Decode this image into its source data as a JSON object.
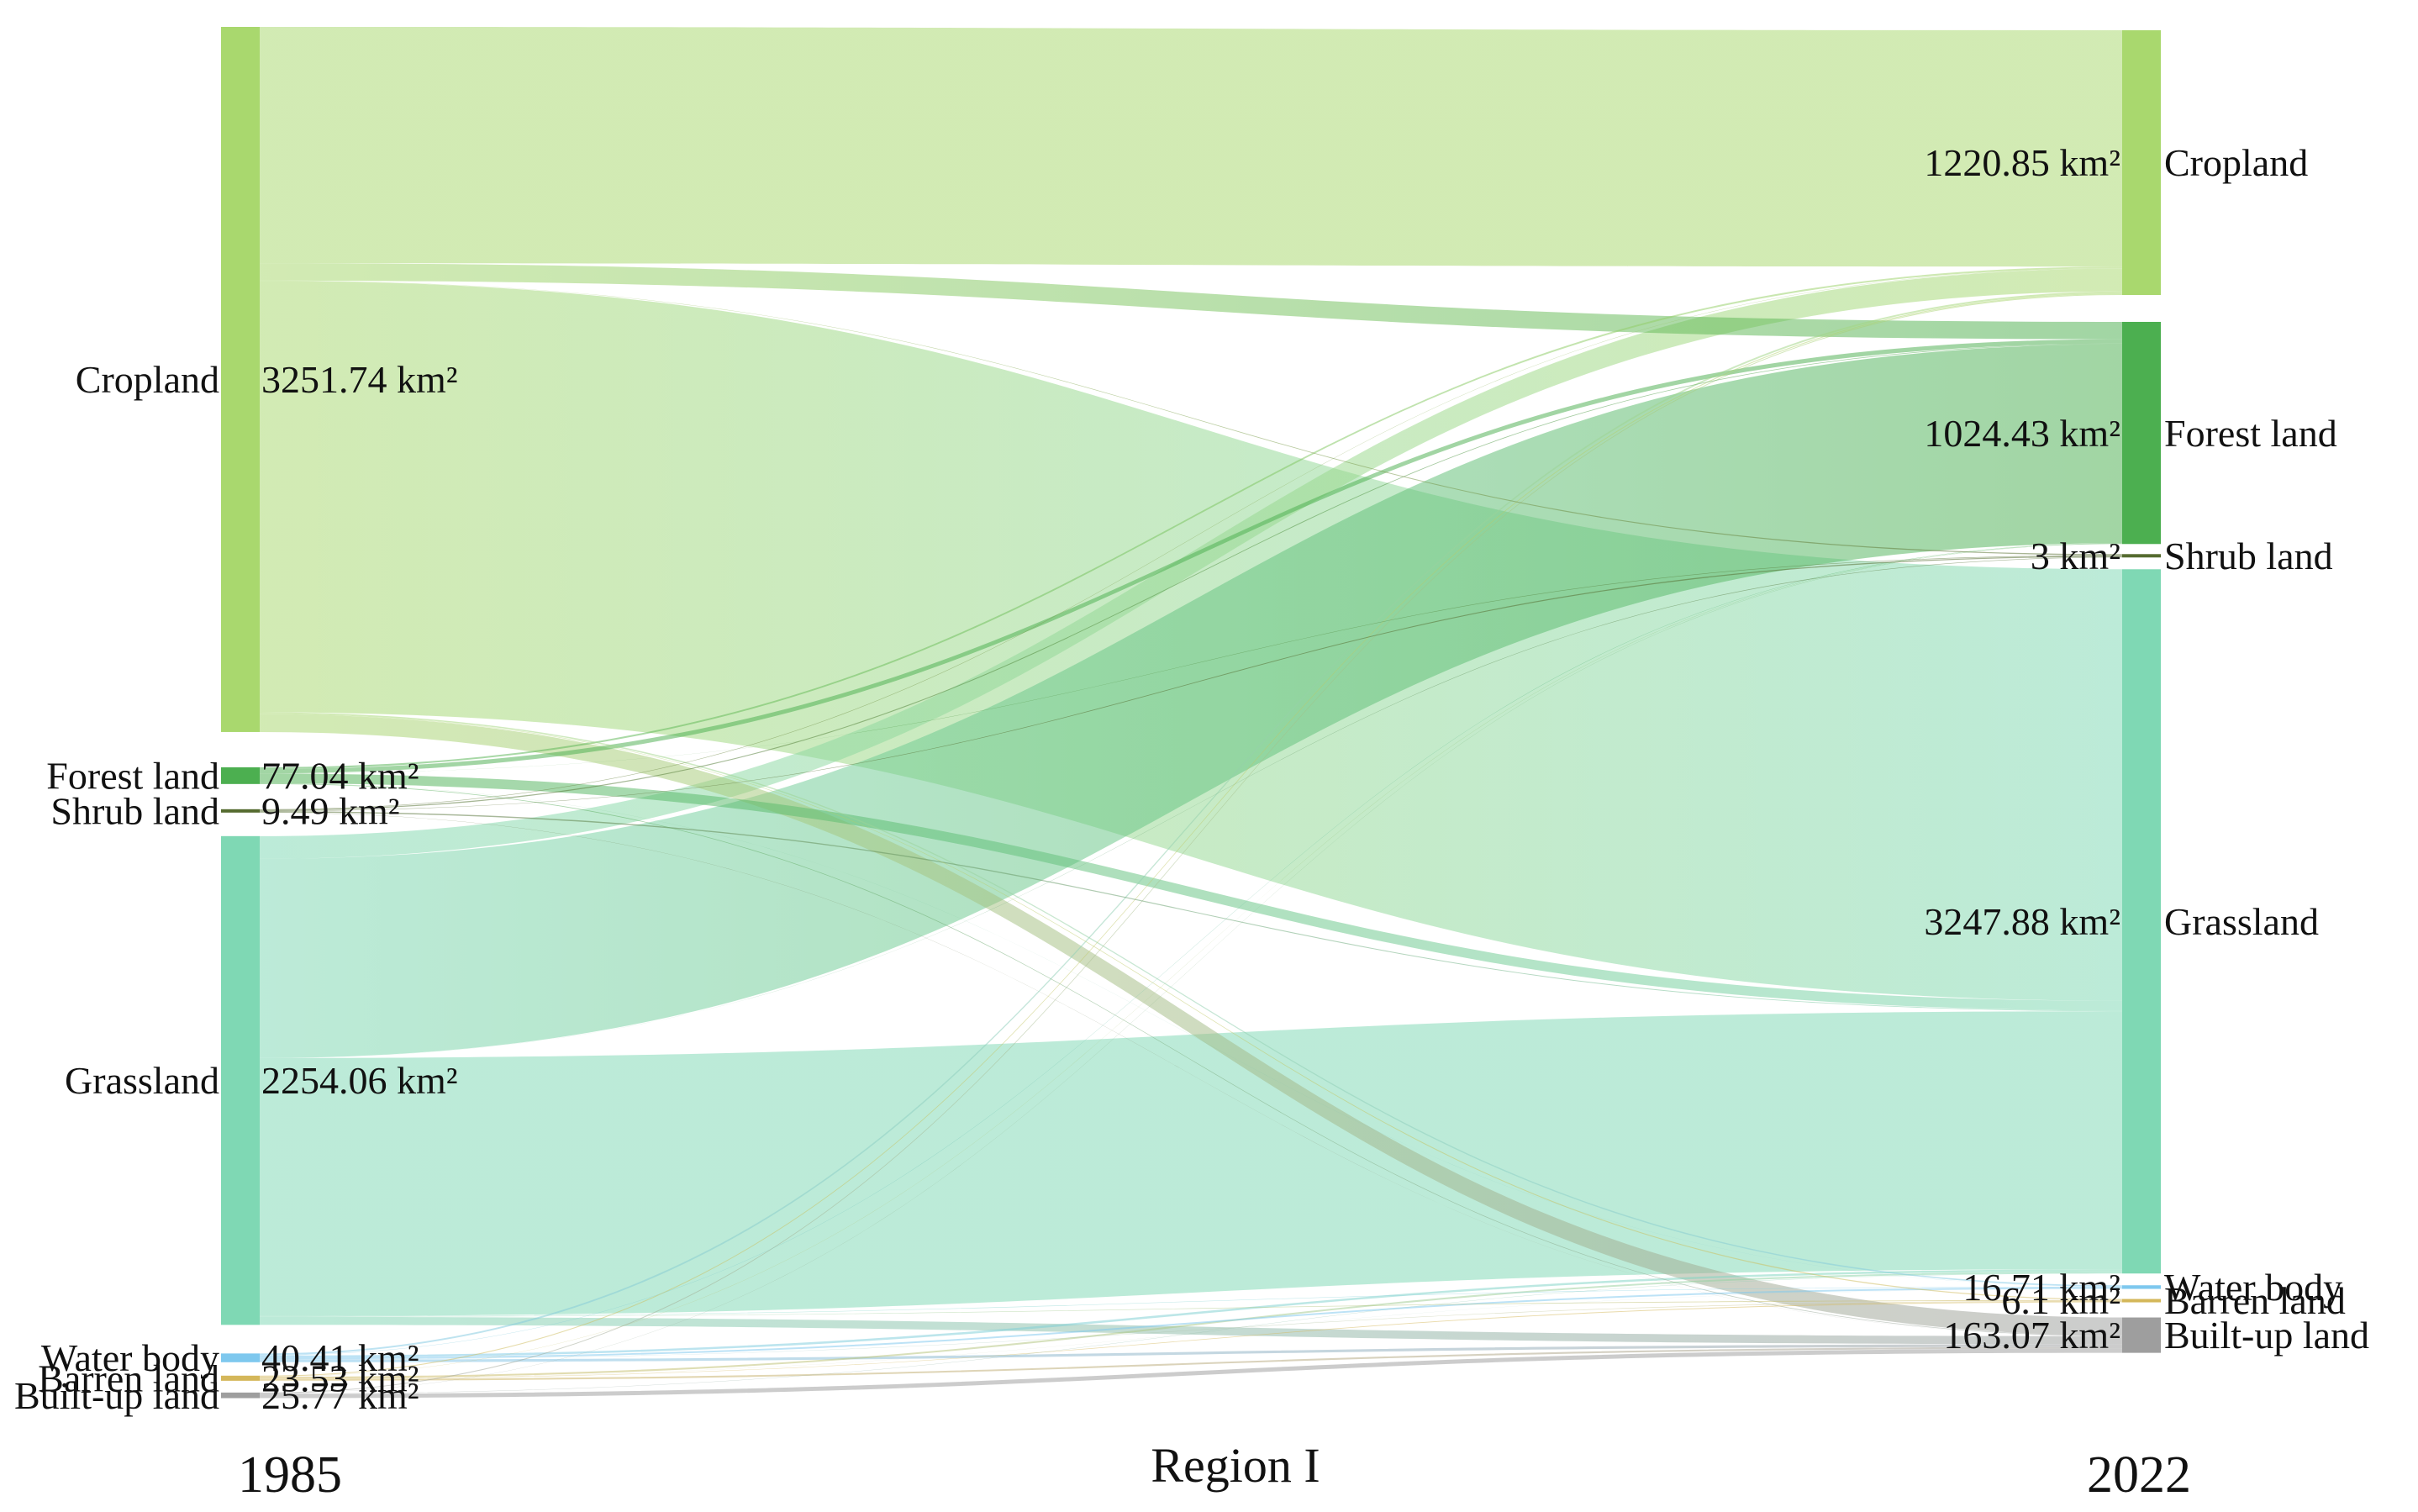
{
  "chart_data": {
    "type": "sankey",
    "title": "Region I",
    "left_year": "1985",
    "right_year": "2022",
    "categories": [
      "Cropland",
      "Forest land",
      "Shrub land",
      "Grassland",
      "Water body",
      "Barren land",
      "Built-up land"
    ],
    "colors": {
      "Cropland": "#a9d86e",
      "Forest land": "#4caf50",
      "Shrub land": "#556b2f",
      "Grassland": "#7fd8b4",
      "Water body": "#7ec8ee",
      "Barren land": "#d4b75a",
      "Built-up land": "#9e9e9e"
    },
    "left_nodes": [
      {
        "name": "Cropland",
        "value": 3251.74,
        "value_label": "3251.74 km²"
      },
      {
        "name": "Forest land",
        "value": 77.04,
        "value_label": "77.04 km²"
      },
      {
        "name": "Shrub land",
        "value": 9.49,
        "value_label": "9.49 km²"
      },
      {
        "name": "Grassland",
        "value": 2254.06,
        "value_label": "2254.06 km²"
      },
      {
        "name": "Water body",
        "value": 40.41,
        "value_label": "40.41 km²"
      },
      {
        "name": "Barren land",
        "value": 23.53,
        "value_label": "23.53 km²"
      },
      {
        "name": "Built-up land",
        "value": 25.77,
        "value_label": "25.77 km²"
      }
    ],
    "right_nodes": [
      {
        "name": "Cropland",
        "value": 1220.85,
        "value_label": "1220.85 km²"
      },
      {
        "name": "Forest land",
        "value": 1024.43,
        "value_label": "1024.43 km²"
      },
      {
        "name": "Shrub land",
        "value": 3,
        "value_label": "3 km²"
      },
      {
        "name": "Grassland",
        "value": 3247.88,
        "value_label": "3247.88 km²"
      },
      {
        "name": "Water body",
        "value": 16.71,
        "value_label": "16.71 km²"
      },
      {
        "name": "Barren land",
        "value": 6.1,
        "value_label": "6.1 km²"
      },
      {
        "name": "Built-up land",
        "value": 163.07,
        "value_label": "163.07 km²"
      }
    ],
    "links": [
      {
        "source": "Cropland",
        "target": "Cropland",
        "value": 1090
      },
      {
        "source": "Cropland",
        "target": "Forest land",
        "value": 80
      },
      {
        "source": "Cropland",
        "target": "Shrub land",
        "value": 1.0
      },
      {
        "source": "Cropland",
        "target": "Grassland",
        "value": 1990
      },
      {
        "source": "Cropland",
        "target": "Water body",
        "value": 6
      },
      {
        "source": "Cropland",
        "target": "Barren land",
        "value": 2.0
      },
      {
        "source": "Cropland",
        "target": "Built-up land",
        "value": 82.74
      },
      {
        "source": "Forest land",
        "target": "Cropland",
        "value": 8
      },
      {
        "source": "Forest land",
        "target": "Forest land",
        "value": 20
      },
      {
        "source": "Forest land",
        "target": "Shrub land",
        "value": 0.5
      },
      {
        "source": "Forest land",
        "target": "Grassland",
        "value": 45
      },
      {
        "source": "Forest land",
        "target": "Water body",
        "value": 0.5
      },
      {
        "source": "Forest land",
        "target": "Built-up land",
        "value": 3.04
      },
      {
        "source": "Shrub land",
        "target": "Cropland",
        "value": 1.5
      },
      {
        "source": "Shrub land",
        "target": "Forest land",
        "value": 3
      },
      {
        "source": "Shrub land",
        "target": "Shrub land",
        "value": 1.0
      },
      {
        "source": "Shrub land",
        "target": "Grassland",
        "value": 3.5
      },
      {
        "source": "Shrub land",
        "target": "Built-up land",
        "value": 0.49
      },
      {
        "source": "Grassland",
        "target": "Cropland",
        "value": 105
      },
      {
        "source": "Grassland",
        "target": "Forest land",
        "value": 918
      },
      {
        "source": "Grassland",
        "target": "Shrub land",
        "value": 0.5
      },
      {
        "source": "Grassland",
        "target": "Grassland",
        "value": 1190
      },
      {
        "source": "Grassland",
        "target": "Water body",
        "value": 2
      },
      {
        "source": "Grassland",
        "target": "Barren land",
        "value": 1.5
      },
      {
        "source": "Grassland",
        "target": "Built-up land",
        "value": 37.06
      },
      {
        "source": "Water body",
        "target": "Cropland",
        "value": 8
      },
      {
        "source": "Water body",
        "target": "Forest land",
        "value": 1.5
      },
      {
        "source": "Water body",
        "target": "Grassland",
        "value": 10
      },
      {
        "source": "Water body",
        "target": "Water body",
        "value": 7.71
      },
      {
        "source": "Water body",
        "target": "Barren land",
        "value": 1.0
      },
      {
        "source": "Water body",
        "target": "Built-up land",
        "value": 12.2
      },
      {
        "source": "Barren land",
        "target": "Cropland",
        "value": 4.35
      },
      {
        "source": "Barren land",
        "target": "Forest land",
        "value": 0.93
      },
      {
        "source": "Barren land",
        "target": "Grassland",
        "value": 8
      },
      {
        "source": "Barren land",
        "target": "Water body",
        "value": 0.5
      },
      {
        "source": "Barren land",
        "target": "Barren land",
        "value": 1.6
      },
      {
        "source": "Barren land",
        "target": "Built-up land",
        "value": 8.15
      },
      {
        "source": "Built-up land",
        "target": "Cropland",
        "value": 4
      },
      {
        "source": "Built-up land",
        "target": "Forest land",
        "value": 1.0
      },
      {
        "source": "Built-up land",
        "target": "Grassland",
        "value": 1.38
      },
      {
        "source": "Built-up land",
        "target": "Built-up land",
        "value": 19.39
      }
    ]
  }
}
